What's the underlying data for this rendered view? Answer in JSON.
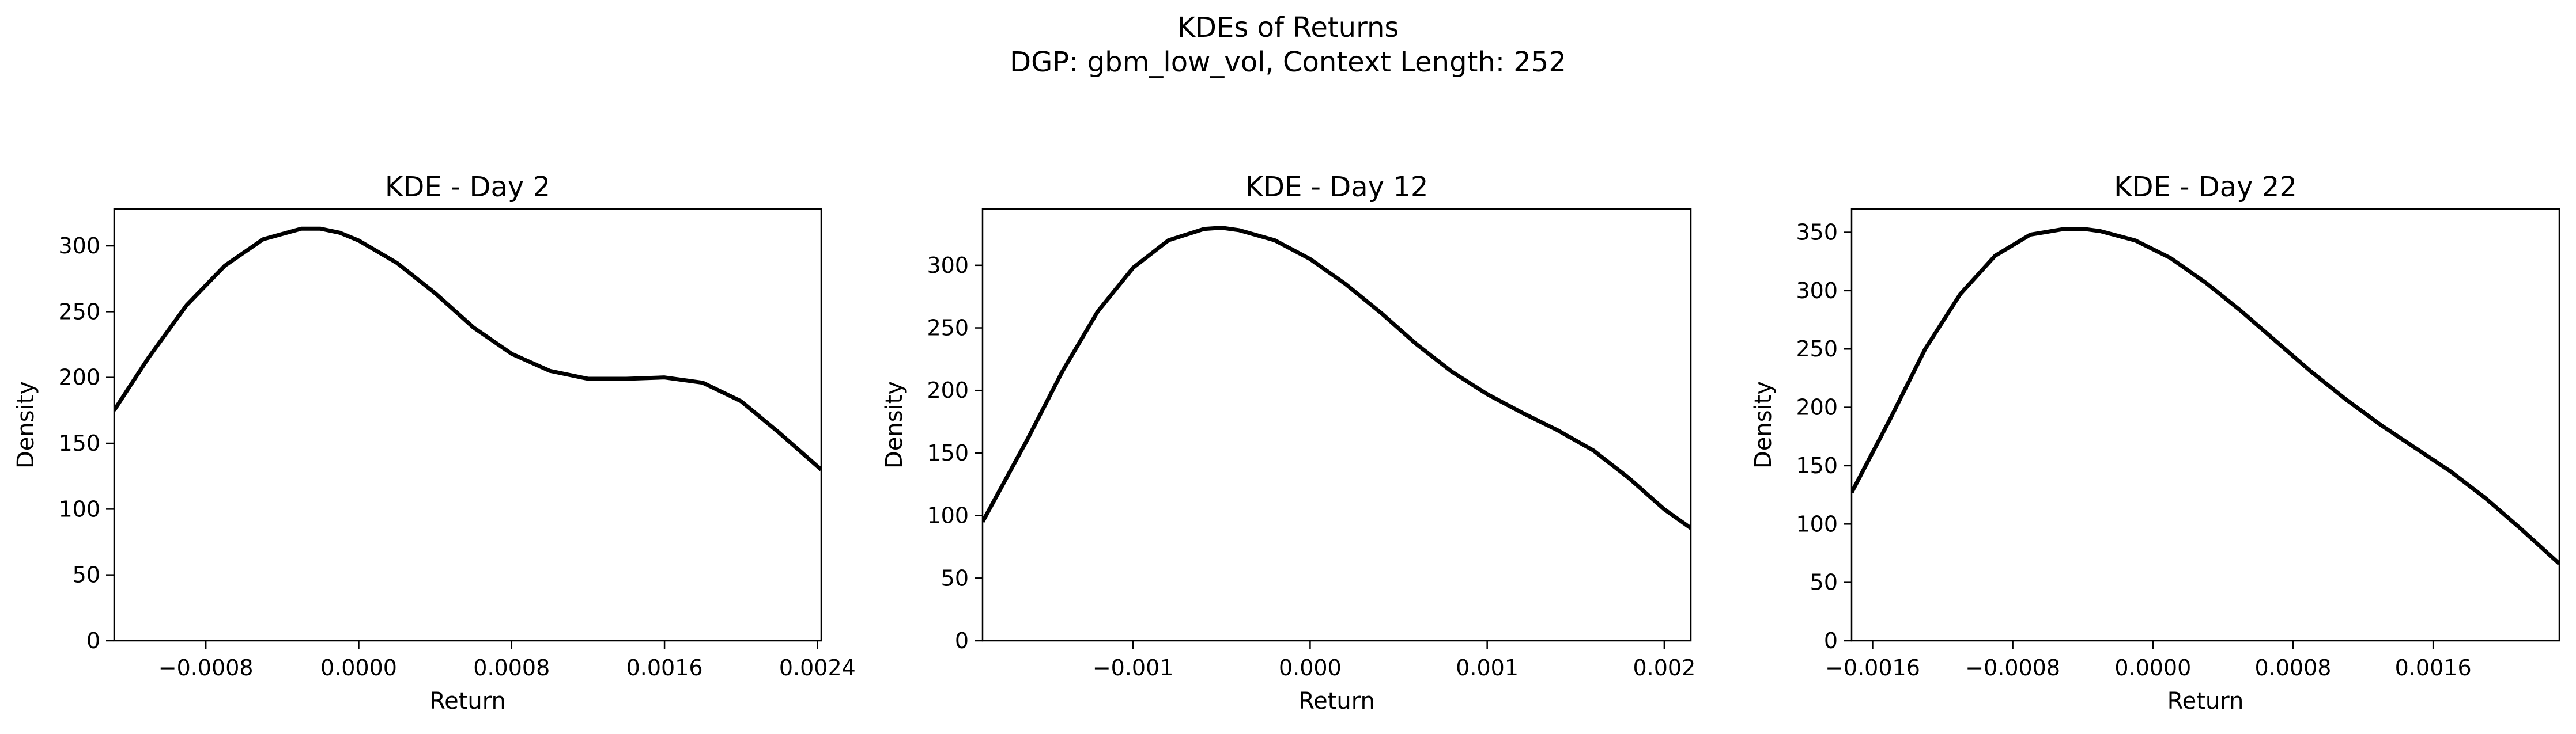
{
  "suptitle": {
    "line1": "KDEs of Returns",
    "line2": "DGP: gbm_low_vol, Context Length: 252"
  },
  "colors": {
    "line": "#000000",
    "axes": "#000000",
    "background": "#ffffff"
  },
  "chart_data": [
    {
      "type": "line",
      "title": "KDE - Day 2",
      "xlabel": "Return",
      "ylabel": "Density",
      "xlim": [
        -0.00128,
        0.00242
      ],
      "ylim": [
        0,
        328
      ],
      "xticks": [
        -0.0008,
        0.0,
        0.0008,
        0.0016,
        0.0024
      ],
      "xtick_labels": [
        "−0.0008",
        "0.0000",
        "0.0008",
        "0.0016",
        "0.0024"
      ],
      "yticks": [
        0,
        50,
        100,
        150,
        200,
        250,
        300
      ],
      "ytick_labels": [
        "0",
        "50",
        "100",
        "150",
        "200",
        "250",
        "300"
      ],
      "grid": false,
      "series": [
        {
          "x": [
            -0.00128,
            -0.0011,
            -0.0009,
            -0.0007,
            -0.0005,
            -0.0003,
            -0.0002,
            -0.0001,
            0.0,
            0.0002,
            0.0004,
            0.0006,
            0.0008,
            0.001,
            0.0012,
            0.0014,
            0.0016,
            0.0018,
            0.002,
            0.0022,
            0.00242
          ],
          "y": [
            175,
            215,
            255,
            285,
            305,
            313,
            313,
            310,
            304,
            287,
            264,
            238,
            218,
            205,
            199,
            199,
            200,
            196,
            182,
            158,
            130
          ]
        }
      ]
    },
    {
      "type": "line",
      "title": "KDE - Day 12",
      "xlabel": "Return",
      "ylabel": "Density",
      "xlim": [
        -0.00185,
        0.00215
      ],
      "ylim": [
        0,
        345
      ],
      "xticks": [
        -0.001,
        0.0,
        0.001,
        0.002
      ],
      "xtick_labels": [
        "−0.001",
        "0.000",
        "0.001",
        "0.002"
      ],
      "yticks": [
        0,
        50,
        100,
        150,
        200,
        250,
        300
      ],
      "ytick_labels": [
        "0",
        "50",
        "100",
        "150",
        "200",
        "250",
        "300"
      ],
      "grid": false,
      "series": [
        {
          "x": [
            -0.00185,
            -0.0016,
            -0.0014,
            -0.0012,
            -0.001,
            -0.0008,
            -0.0006,
            -0.0005,
            -0.0004,
            -0.0002,
            0.0,
            0.0002,
            0.0004,
            0.0006,
            0.0008,
            0.001,
            0.0012,
            0.0014,
            0.0016,
            0.0018,
            0.002,
            0.00215
          ],
          "y": [
            95,
            160,
            215,
            263,
            298,
            320,
            329,
            330,
            328,
            320,
            305,
            285,
            262,
            237,
            215,
            197,
            182,
            168,
            152,
            130,
            105,
            90
          ]
        }
      ]
    },
    {
      "type": "line",
      "title": "KDE - Day 22",
      "xlabel": "Return",
      "ylabel": "Density",
      "xlim": [
        -0.00172,
        0.00232
      ],
      "ylim": [
        0,
        370
      ],
      "xticks": [
        -0.0016,
        -0.0008,
        0.0,
        0.0008,
        0.0016
      ],
      "xtick_labels": [
        "−0.0016",
        "−0.0008",
        "0.0000",
        "0.0008",
        "0.0016"
      ],
      "yticks": [
        0,
        50,
        100,
        150,
        200,
        250,
        300,
        350
      ],
      "ytick_labels": [
        "0",
        "50",
        "100",
        "150",
        "200",
        "250",
        "300",
        "350"
      ],
      "grid": false,
      "series": [
        {
          "x": [
            -0.00172,
            -0.0015,
            -0.0013,
            -0.0011,
            -0.0009,
            -0.0007,
            -0.0005,
            -0.0004,
            -0.0003,
            -0.0001,
            0.0001,
            0.0003,
            0.0005,
            0.0007,
            0.0009,
            0.0011,
            0.0013,
            0.0015,
            0.0017,
            0.0019,
            0.0021,
            0.00232
          ],
          "y": [
            127,
            190,
            250,
            297,
            330,
            348,
            353,
            353,
            351,
            343,
            328,
            307,
            283,
            257,
            231,
            207,
            185,
            165,
            145,
            122,
            96,
            66
          ]
        }
      ]
    }
  ]
}
